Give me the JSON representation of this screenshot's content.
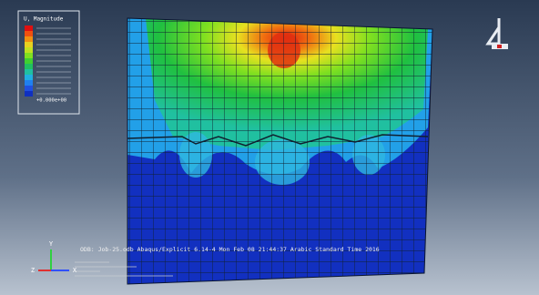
{
  "legend": {
    "title": "U, Magnitude",
    "min_label": "+0.000e+00"
  },
  "status": {
    "line": "ODB: Job-25.odb    Abaqus/Explicit 6.14-4    Mon Feb 08 21:44:37 Arabic Standard Time 2016"
  },
  "triad": {
    "y": "Y",
    "z": "Z",
    "x": "X"
  }
}
